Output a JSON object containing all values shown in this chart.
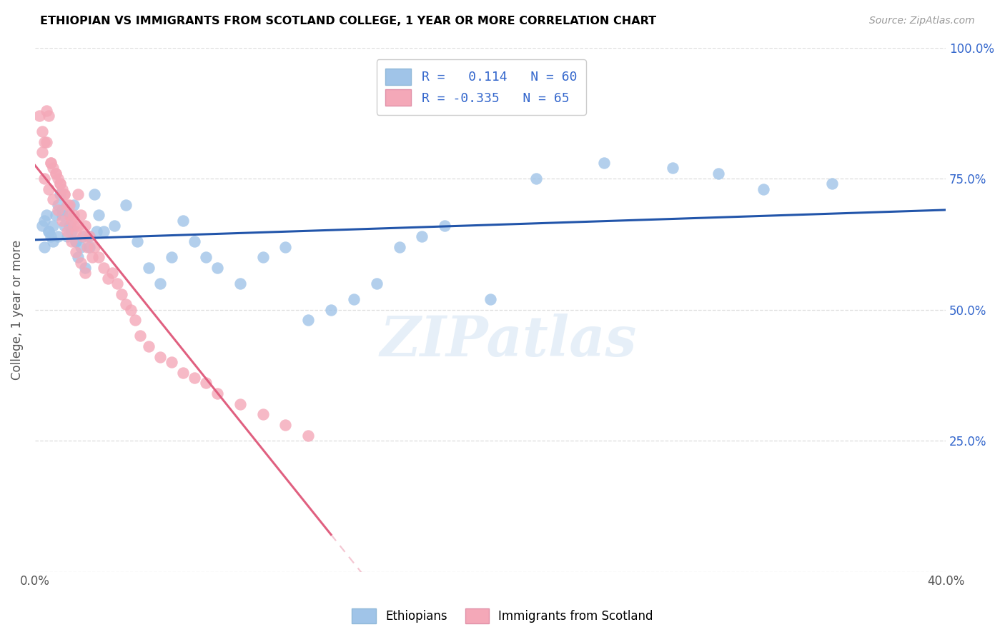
{
  "title": "ETHIOPIAN VS IMMIGRANTS FROM SCOTLAND COLLEGE, 1 YEAR OR MORE CORRELATION CHART",
  "source": "Source: ZipAtlas.com",
  "ylabel": "College, 1 year or more",
  "xlim": [
    0.0,
    0.4
  ],
  "ylim": [
    0.0,
    1.0
  ],
  "blue_color": "#a0c4e8",
  "pink_color": "#f4a8b8",
  "blue_line_color": "#2255aa",
  "pink_line_color": "#e06080",
  "grid_color": "#dddddd",
  "legend_R_blue": "0.114",
  "legend_N_blue": "60",
  "legend_R_pink": "-0.335",
  "legend_N_pink": "65",
  "watermark": "ZIPatlas",
  "blue_scatter_x": [
    0.003,
    0.004,
    0.005,
    0.006,
    0.007,
    0.008,
    0.009,
    0.01,
    0.011,
    0.012,
    0.013,
    0.014,
    0.015,
    0.016,
    0.017,
    0.018,
    0.019,
    0.02,
    0.022,
    0.024,
    0.026,
    0.028,
    0.03,
    0.035,
    0.04,
    0.045,
    0.05,
    0.055,
    0.06,
    0.065,
    0.07,
    0.075,
    0.08,
    0.09,
    0.1,
    0.11,
    0.12,
    0.13,
    0.14,
    0.15,
    0.16,
    0.17,
    0.18,
    0.2,
    0.22,
    0.25,
    0.28,
    0.3,
    0.32,
    0.35,
    0.004,
    0.006,
    0.008,
    0.01,
    0.012,
    0.015,
    0.018,
    0.021,
    0.024,
    0.027
  ],
  "blue_scatter_y": [
    0.66,
    0.67,
    0.68,
    0.65,
    0.64,
    0.66,
    0.68,
    0.7,
    0.72,
    0.69,
    0.66,
    0.64,
    0.68,
    0.65,
    0.7,
    0.63,
    0.6,
    0.62,
    0.58,
    0.64,
    0.72,
    0.68,
    0.65,
    0.66,
    0.7,
    0.63,
    0.58,
    0.55,
    0.6,
    0.67,
    0.63,
    0.6,
    0.58,
    0.55,
    0.6,
    0.62,
    0.48,
    0.5,
    0.52,
    0.55,
    0.62,
    0.64,
    0.66,
    0.52,
    0.75,
    0.78,
    0.77,
    0.76,
    0.73,
    0.74,
    0.62,
    0.65,
    0.63,
    0.64,
    0.68,
    0.66,
    0.63,
    0.64,
    0.62,
    0.65
  ],
  "pink_scatter_x": [
    0.002,
    0.003,
    0.004,
    0.005,
    0.006,
    0.007,
    0.008,
    0.009,
    0.01,
    0.011,
    0.012,
    0.013,
    0.014,
    0.015,
    0.016,
    0.017,
    0.018,
    0.019,
    0.02,
    0.022,
    0.024,
    0.026,
    0.028,
    0.03,
    0.032,
    0.034,
    0.036,
    0.038,
    0.04,
    0.042,
    0.044,
    0.046,
    0.05,
    0.055,
    0.06,
    0.065,
    0.07,
    0.075,
    0.08,
    0.09,
    0.1,
    0.11,
    0.12,
    0.003,
    0.005,
    0.007,
    0.009,
    0.011,
    0.013,
    0.015,
    0.017,
    0.019,
    0.021,
    0.023,
    0.025,
    0.004,
    0.006,
    0.008,
    0.01,
    0.012,
    0.014,
    0.016,
    0.018,
    0.02,
    0.022
  ],
  "pink_scatter_y": [
    0.87,
    0.84,
    0.82,
    0.88,
    0.87,
    0.78,
    0.77,
    0.76,
    0.75,
    0.74,
    0.73,
    0.72,
    0.7,
    0.68,
    0.67,
    0.66,
    0.65,
    0.72,
    0.68,
    0.66,
    0.64,
    0.62,
    0.6,
    0.58,
    0.56,
    0.57,
    0.55,
    0.53,
    0.51,
    0.5,
    0.48,
    0.45,
    0.43,
    0.41,
    0.4,
    0.38,
    0.37,
    0.36,
    0.34,
    0.32,
    0.3,
    0.28,
    0.26,
    0.8,
    0.82,
    0.78,
    0.76,
    0.74,
    0.72,
    0.7,
    0.68,
    0.66,
    0.64,
    0.62,
    0.6,
    0.75,
    0.73,
    0.71,
    0.69,
    0.67,
    0.65,
    0.63,
    0.61,
    0.59,
    0.57
  ]
}
